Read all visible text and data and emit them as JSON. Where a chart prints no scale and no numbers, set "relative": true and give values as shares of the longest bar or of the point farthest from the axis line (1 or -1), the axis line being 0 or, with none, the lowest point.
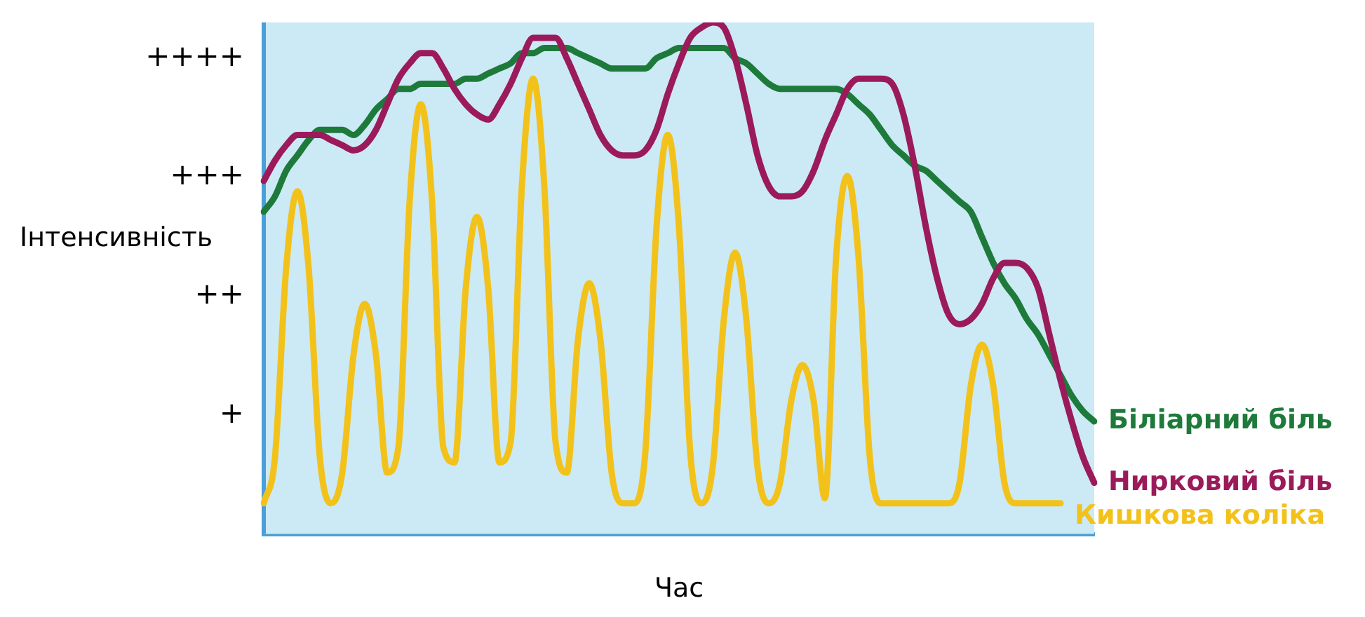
{
  "chart_data": {
    "type": "line",
    "xlabel": "Час",
    "ylabel": "Інтенсивність",
    "relative": true,
    "annotations": [
      "+",
      "++",
      "+++",
      "++++"
    ],
    "categories": [
      null,
      null,
      null,
      null,
      null,
      null,
      null,
      null,
      null,
      null,
      null,
      null,
      null,
      null,
      null,
      null,
      null,
      null,
      null,
      null,
      null,
      null,
      null,
      null,
      null,
      null,
      null,
      null,
      null,
      null,
      null,
      null,
      null,
      null,
      null,
      null,
      null,
      null,
      null,
      null,
      null,
      null,
      null,
      null,
      null,
      null,
      null,
      null,
      null,
      null,
      null,
      null,
      null,
      null,
      null,
      null,
      null,
      null,
      null,
      null,
      null,
      null,
      null,
      null,
      null,
      null,
      null,
      null,
      null,
      null,
      null,
      null,
      null,
      null,
      null
    ],
    "series": [
      {
        "name": "Нирковий біль",
        "color": "#9b1b5a",
        "values": [
          0.69,
          0.73,
          0.76,
          0.78,
          0.78,
          0.78,
          0.77,
          0.76,
          0.75,
          0.76,
          0.79,
          0.84,
          0.89,
          0.92,
          0.94,
          0.94,
          0.91,
          0.87,
          0.84,
          0.82,
          0.81,
          0.84,
          0.88,
          0.93,
          0.97,
          0.97,
          0.97,
          0.93,
          0.88,
          0.83,
          0.78,
          0.75,
          0.74,
          0.74,
          0.75,
          0.79,
          0.86,
          0.92,
          0.97,
          0.99,
          1,
          0.99,
          0.93,
          0.84,
          0.74,
          0.68,
          0.66,
          0.66,
          0.67,
          0.71,
          0.77,
          0.82,
          0.87,
          0.89,
          0.89,
          0.89,
          0.88,
          0.82,
          0.72,
          0.6,
          0.5,
          0.43,
          0.41,
          0.42,
          0.45,
          0.5,
          0.53,
          0.53,
          0.52,
          0.48,
          0.39,
          0.3,
          0.22,
          0.15,
          0.1
        ]
      },
      {
        "name": "Біліарний біль",
        "color": "#1e7a3a",
        "values": [
          0.63,
          0.66,
          0.71,
          0.74,
          0.77,
          0.79,
          0.79,
          0.79,
          0.78,
          0.8,
          0.83,
          0.85,
          0.87,
          0.87,
          0.88,
          0.88,
          0.88,
          0.88,
          0.89,
          0.89,
          0.9,
          0.91,
          0.92,
          0.94,
          0.94,
          0.95,
          0.95,
          0.95,
          0.94,
          0.93,
          0.92,
          0.91,
          0.91,
          0.91,
          0.91,
          0.93,
          0.94,
          0.95,
          0.95,
          0.95,
          0.95,
          0.95,
          0.93,
          0.92,
          0.9,
          0.88,
          0.87,
          0.87,
          0.87,
          0.87,
          0.87,
          0.87,
          0.86,
          0.84,
          0.82,
          0.79,
          0.76,
          0.74,
          0.72,
          0.71,
          0.69,
          0.67,
          0.65,
          0.63,
          0.58,
          0.53,
          0.49,
          0.46,
          0.42,
          0.39,
          0.35,
          0.31,
          0.27,
          0.24,
          0.22
        ]
      },
      {
        "name": "Кишкова коліка",
        "color": "#f2c21b",
        "values": [
          0.06,
          0.15,
          0.52,
          0.67,
          0.52,
          0.15,
          0.06,
          0.12,
          0.35,
          0.45,
          0.35,
          0.12,
          0.17,
          0.65,
          0.84,
          0.65,
          0.17,
          0.14,
          0.48,
          0.62,
          0.48,
          0.14,
          0.18,
          0.68,
          0.89,
          0.68,
          0.18,
          0.12,
          0.38,
          0.49,
          0.38,
          0.12,
          0.06,
          0.06,
          0.16,
          0.6,
          0.78,
          0.6,
          0.16,
          0.06,
          0.13,
          0.42,
          0.55,
          0.42,
          0.13,
          0.06,
          0.1,
          0.26,
          0.33,
          0.26,
          0.07,
          0.54,
          0.7,
          0.54,
          0.15,
          0.06,
          0.06,
          0.06,
          0.06,
          0.06,
          0.06,
          0.06,
          0.1,
          0.29,
          0.37,
          0.29,
          0.1,
          0.06,
          0.06,
          0.06,
          0.06,
          0.06,
          null,
          null,
          null
        ]
      }
    ],
    "grid": false,
    "legend": false,
    "marker": "none",
    "line_style": "solid"
  }
}
